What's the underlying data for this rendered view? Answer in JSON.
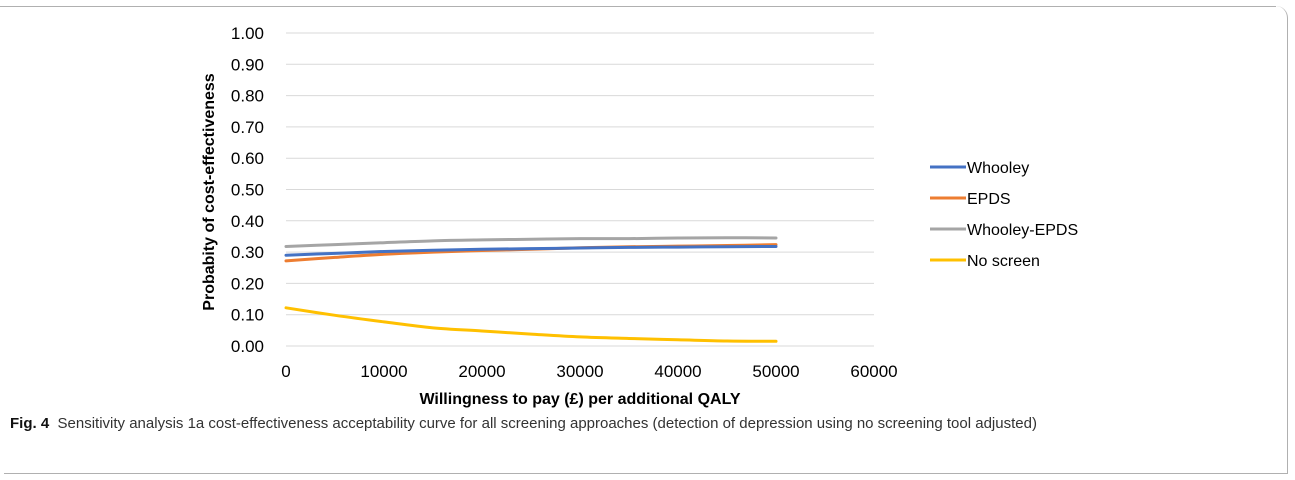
{
  "chart_data": {
    "type": "line",
    "xlabel": "Willingness to pay (£) per additional QALY",
    "ylabel": "Probabity of cost-effectiveness",
    "xlim": [
      0,
      60000
    ],
    "ylim": [
      0,
      1
    ],
    "x_ticks": [
      "0",
      "10000",
      "20000",
      "30000",
      "40000",
      "50000",
      "60000"
    ],
    "y_ticks": [
      "0.00",
      "0.10",
      "0.20",
      "0.30",
      "0.40",
      "0.50",
      "0.60",
      "0.70",
      "0.80",
      "0.90",
      "1.00"
    ],
    "grid": "horizontal",
    "legend_position": "right",
    "x": [
      0,
      5000,
      10000,
      15000,
      20000,
      25000,
      30000,
      35000,
      40000,
      45000,
      50000
    ],
    "series": [
      {
        "name": "Whooley",
        "color": "#4472C4",
        "values": [
          0.29,
          0.296,
          0.302,
          0.306,
          0.309,
          0.311,
          0.313,
          0.315,
          0.316,
          0.317,
          0.318
        ]
      },
      {
        "name": "EPDS",
        "color": "#ED7D31",
        "values": [
          0.272,
          0.283,
          0.293,
          0.3,
          0.305,
          0.309,
          0.314,
          0.317,
          0.319,
          0.321,
          0.324
        ]
      },
      {
        "name": "Whooley-EPDS",
        "color": "#A5A5A5",
        "values": [
          0.318,
          0.324,
          0.33,
          0.336,
          0.339,
          0.341,
          0.343,
          0.343,
          0.345,
          0.346,
          0.345
        ]
      },
      {
        "name": "No screen",
        "color": "#FFC000",
        "values": [
          0.122,
          0.098,
          0.077,
          0.058,
          0.048,
          0.038,
          0.029,
          0.024,
          0.02,
          0.016,
          0.015
        ]
      }
    ]
  },
  "caption": {
    "label": "Fig. 4",
    "text": "Sensitivity analysis 1a cost-effectiveness acceptability curve for all screening approaches (detection of depression using no screening tool adjusted)"
  }
}
